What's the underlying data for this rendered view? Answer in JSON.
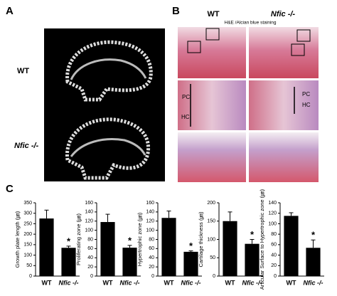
{
  "panel_a": {
    "label": "A",
    "rows": [
      "WT",
      "Nfic -/-"
    ]
  },
  "panel_b": {
    "label": "B",
    "columns": [
      "WT",
      "Nfic -/-"
    ],
    "stain": "H&E /Alcian blue staining",
    "zone_labels": [
      "PC",
      "HC"
    ]
  },
  "panel_c": {
    "label": "C"
  },
  "chart_data": [
    {
      "type": "bar",
      "y_label": "Growth plate length (㎛)",
      "categories": [
        "WT",
        "Nfic -/-"
      ],
      "values": [
        275,
        135
      ],
      "errors": [
        40,
        8
      ],
      "color": "#000000",
      "ylim": [
        0,
        350
      ],
      "yticks": [
        0,
        50,
        100,
        150,
        200,
        250,
        300,
        350
      ],
      "significance": "*"
    },
    {
      "type": "bar",
      "y_label": "Proliferating zone (㎛)",
      "categories": [
        "WT",
        "Nfic -/-"
      ],
      "values": [
        118,
        62
      ],
      "errors": [
        17,
        5
      ],
      "color": "#000000",
      "ylim": [
        0,
        160
      ],
      "yticks": [
        0,
        20,
        40,
        60,
        80,
        100,
        120,
        140,
        160
      ],
      "significance": "*"
    },
    {
      "type": "bar",
      "y_label": "Hypertrophic zone (㎛)",
      "categories": [
        "WT",
        "Nfic -/-"
      ],
      "values": [
        127,
        53
      ],
      "errors": [
        15,
        2
      ],
      "color": "#000000",
      "ylim": [
        0,
        160
      ],
      "yticks": [
        0,
        20,
        40,
        60,
        80,
        100,
        120,
        140,
        160
      ],
      "significance": "*"
    },
    {
      "type": "bar",
      "y_label": "Cartilage thickness (㎛)",
      "categories": [
        "WT",
        "Nfic -/-"
      ],
      "values": [
        150,
        88
      ],
      "errors": [
        25,
        12
      ],
      "color": "#000000",
      "ylim": [
        0,
        200
      ],
      "yticks": [
        0,
        50,
        100,
        150,
        200
      ],
      "significance": "*"
    },
    {
      "type": "bar",
      "y_label": "Articular Surface to Hypertrophic zone (㎛)",
      "categories": [
        "WT",
        "Nfic -/-"
      ],
      "values": [
        115,
        54
      ],
      "errors": [
        6,
        15
      ],
      "color": "#000000",
      "ylim": [
        0,
        140
      ],
      "yticks": [
        0,
        20,
        40,
        60,
        80,
        100,
        120,
        140
      ],
      "significance": "*"
    }
  ]
}
